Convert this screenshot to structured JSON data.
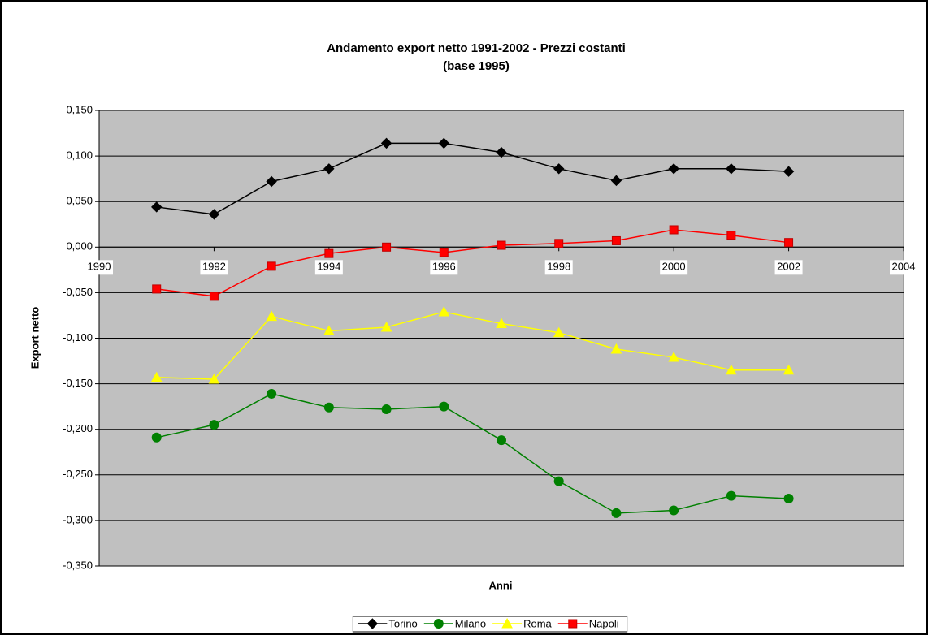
{
  "chart_data": {
    "type": "line",
    "title": "Andamento export netto 1991-2002 - Prezzi costanti",
    "subtitle": "(base 1995)",
    "x_label": "Anni",
    "y_label": "Export netto",
    "x": [
      1991,
      1992,
      1993,
      1994,
      1995,
      1996,
      1997,
      1998,
      1999,
      2000,
      2001,
      2002
    ],
    "series": [
      {
        "name": "Torino",
        "color": "#000000",
        "marker": "diamond",
        "values": [
          0.044,
          0.036,
          0.072,
          0.086,
          0.114,
          0.114,
          0.104,
          0.086,
          0.073,
          0.086,
          0.086,
          0.083
        ]
      },
      {
        "name": "Milano",
        "color": "#008000",
        "marker": "circle",
        "values": [
          -0.209,
          -0.195,
          -0.161,
          -0.176,
          -0.178,
          -0.175,
          -0.212,
          -0.257,
          -0.292,
          -0.289,
          -0.273,
          -0.276
        ]
      },
      {
        "name": "Roma",
        "color": "#ffff00",
        "marker": "triangle",
        "values": [
          -0.143,
          -0.145,
          -0.076,
          -0.092,
          -0.088,
          -0.071,
          -0.084,
          -0.094,
          -0.112,
          -0.121,
          -0.135,
          -0.135
        ]
      },
      {
        "name": "Napoli",
        "color": "#ff0000",
        "marker": "square",
        "values": [
          -0.046,
          -0.054,
          -0.021,
          -0.007,
          0.0,
          -0.006,
          0.002,
          0.004,
          0.007,
          0.019,
          0.013,
          0.005
        ]
      }
    ],
    "xlim": [
      1990,
      2004
    ],
    "xticks": [
      1990,
      1992,
      1994,
      1996,
      1998,
      2000,
      2002,
      2004
    ],
    "ylim": [
      -0.35,
      0.15
    ],
    "yticks": [
      {
        "value": -0.35,
        "label": "-0,350"
      },
      {
        "value": -0.3,
        "label": "-0,300"
      },
      {
        "value": -0.25,
        "label": "-0,250"
      },
      {
        "value": -0.2,
        "label": "-0,200"
      },
      {
        "value": -0.15,
        "label": "-0,150"
      },
      {
        "value": -0.1,
        "label": "-0,100"
      },
      {
        "value": -0.05,
        "label": "-0,050"
      },
      {
        "value": 0,
        "label": "0,000"
      },
      {
        "value": 0.05,
        "label": "0,050"
      },
      {
        "value": 0.1,
        "label": "0,100"
      },
      {
        "value": 0.15,
        "label": "0,150"
      }
    ],
    "grid": true,
    "plot_background": "#c0c0c0",
    "legend": "bottom"
  }
}
